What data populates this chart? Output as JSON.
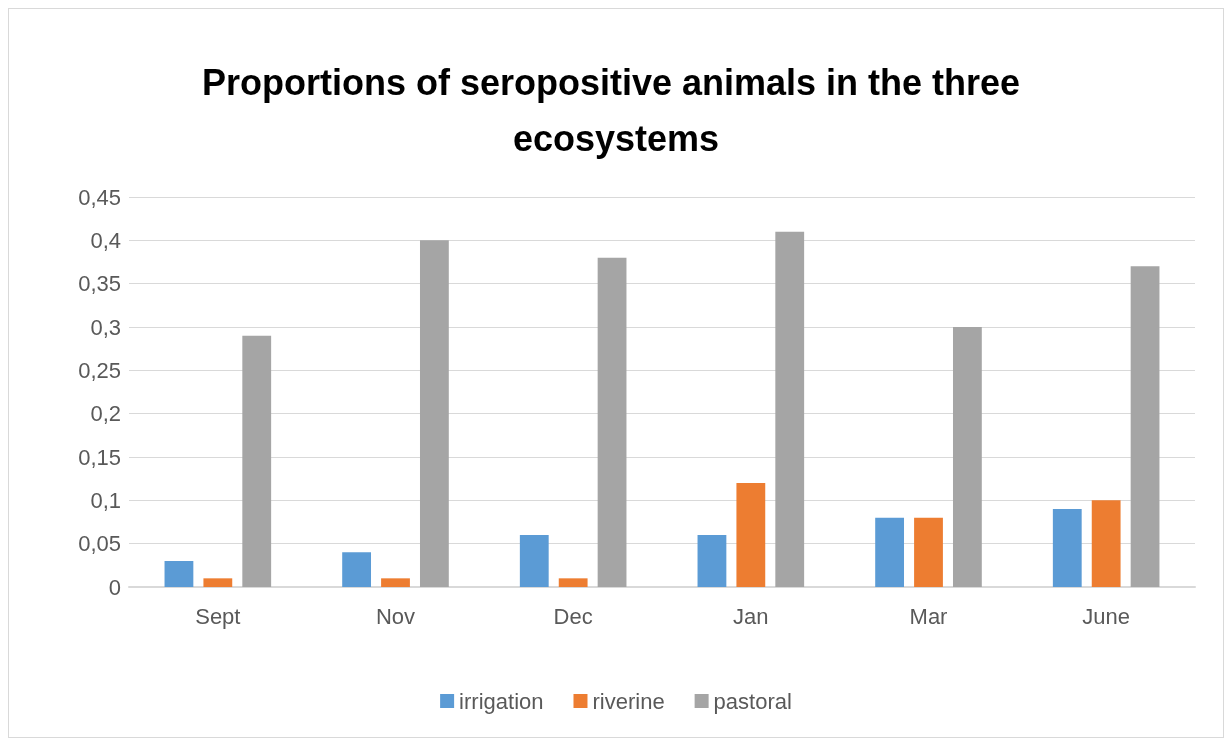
{
  "chart_data": {
    "type": "bar",
    "title": "Proportions of seropositive animals in the three ecosystems",
    "categories": [
      "Sept",
      "Nov",
      "Dec",
      "Jan",
      "Mar",
      "June"
    ],
    "series": [
      {
        "name": "irrigation",
        "color": "#5b9bd5",
        "values": [
          0.03,
          0.04,
          0.06,
          0.06,
          0.08,
          0.09
        ]
      },
      {
        "name": "riverine",
        "color": "#ed7d31",
        "values": [
          0.01,
          0.01,
          0.01,
          0.12,
          0.08,
          0.1
        ]
      },
      {
        "name": "pastoral",
        "color": "#a5a5a5",
        "values": [
          0.29,
          0.4,
          0.38,
          0.41,
          0.3,
          0.37
        ]
      }
    ],
    "ylim": [
      0,
      0.45
    ],
    "yticks": [
      {
        "value": 0,
        "label": "0"
      },
      {
        "value": 0.05,
        "label": "0,05"
      },
      {
        "value": 0.1,
        "label": "0,1"
      },
      {
        "value": 0.15,
        "label": "0,15"
      },
      {
        "value": 0.2,
        "label": "0,2"
      },
      {
        "value": 0.25,
        "label": "0,25"
      },
      {
        "value": 0.3,
        "label": "0,3"
      },
      {
        "value": 0.35,
        "label": "0,35"
      },
      {
        "value": 0.4,
        "label": "0,4"
      },
      {
        "value": 0.45,
        "label": "0,45"
      }
    ],
    "grid": "y",
    "legend": "bottom"
  }
}
